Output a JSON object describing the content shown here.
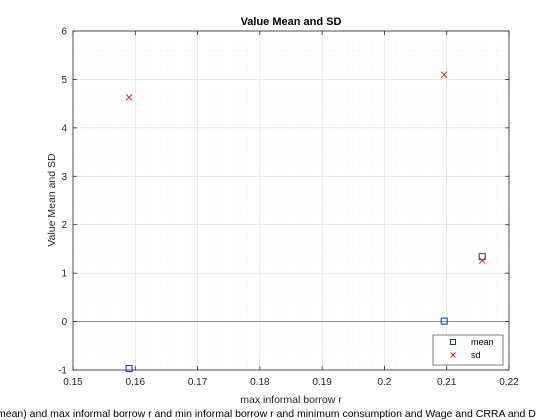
{
  "chart_data": {
    "type": "scatter",
    "title": "Value Mean and SD",
    "xlabel": "max informal borrow r",
    "ylabel": "Value Mean and SD",
    "footer": "mean) and max informal borrow r and min informal borrow r and minimum consumption and Wage and CRRA and D",
    "xlim": [
      0.15,
      0.22
    ],
    "ylim": [
      -1,
      6
    ],
    "x_ticks": [
      0.15,
      0.16,
      0.17,
      0.18,
      0.19,
      0.2,
      0.21,
      0.22
    ],
    "x_tick_labels": [
      "0.15",
      "0.16",
      "0.17",
      "0.18",
      "0.19",
      "0.2",
      "0.21",
      "0.22"
    ],
    "y_ticks": [
      -1,
      0,
      1,
      2,
      3,
      4,
      5,
      6
    ],
    "y_tick_labels": [
      "-1",
      "0",
      "1",
      "2",
      "3",
      "4",
      "5",
      "6"
    ],
    "grid": true,
    "minor_grid": true,
    "reference_line_y": 0,
    "legend_position": "bottom-right",
    "series": [
      {
        "name": "mean",
        "marker": "square",
        "color": "#0b3c8c",
        "points": [
          [
            0.159,
            -0.97
          ],
          [
            0.2096,
            0.01
          ],
          [
            0.2157,
            1.34
          ]
        ]
      },
      {
        "name": "sd",
        "marker": "x",
        "color": "#d62728",
        "points": [
          [
            0.159,
            4.63
          ],
          [
            0.2096,
            5.1
          ],
          [
            0.2157,
            1.26
          ]
        ]
      }
    ]
  }
}
